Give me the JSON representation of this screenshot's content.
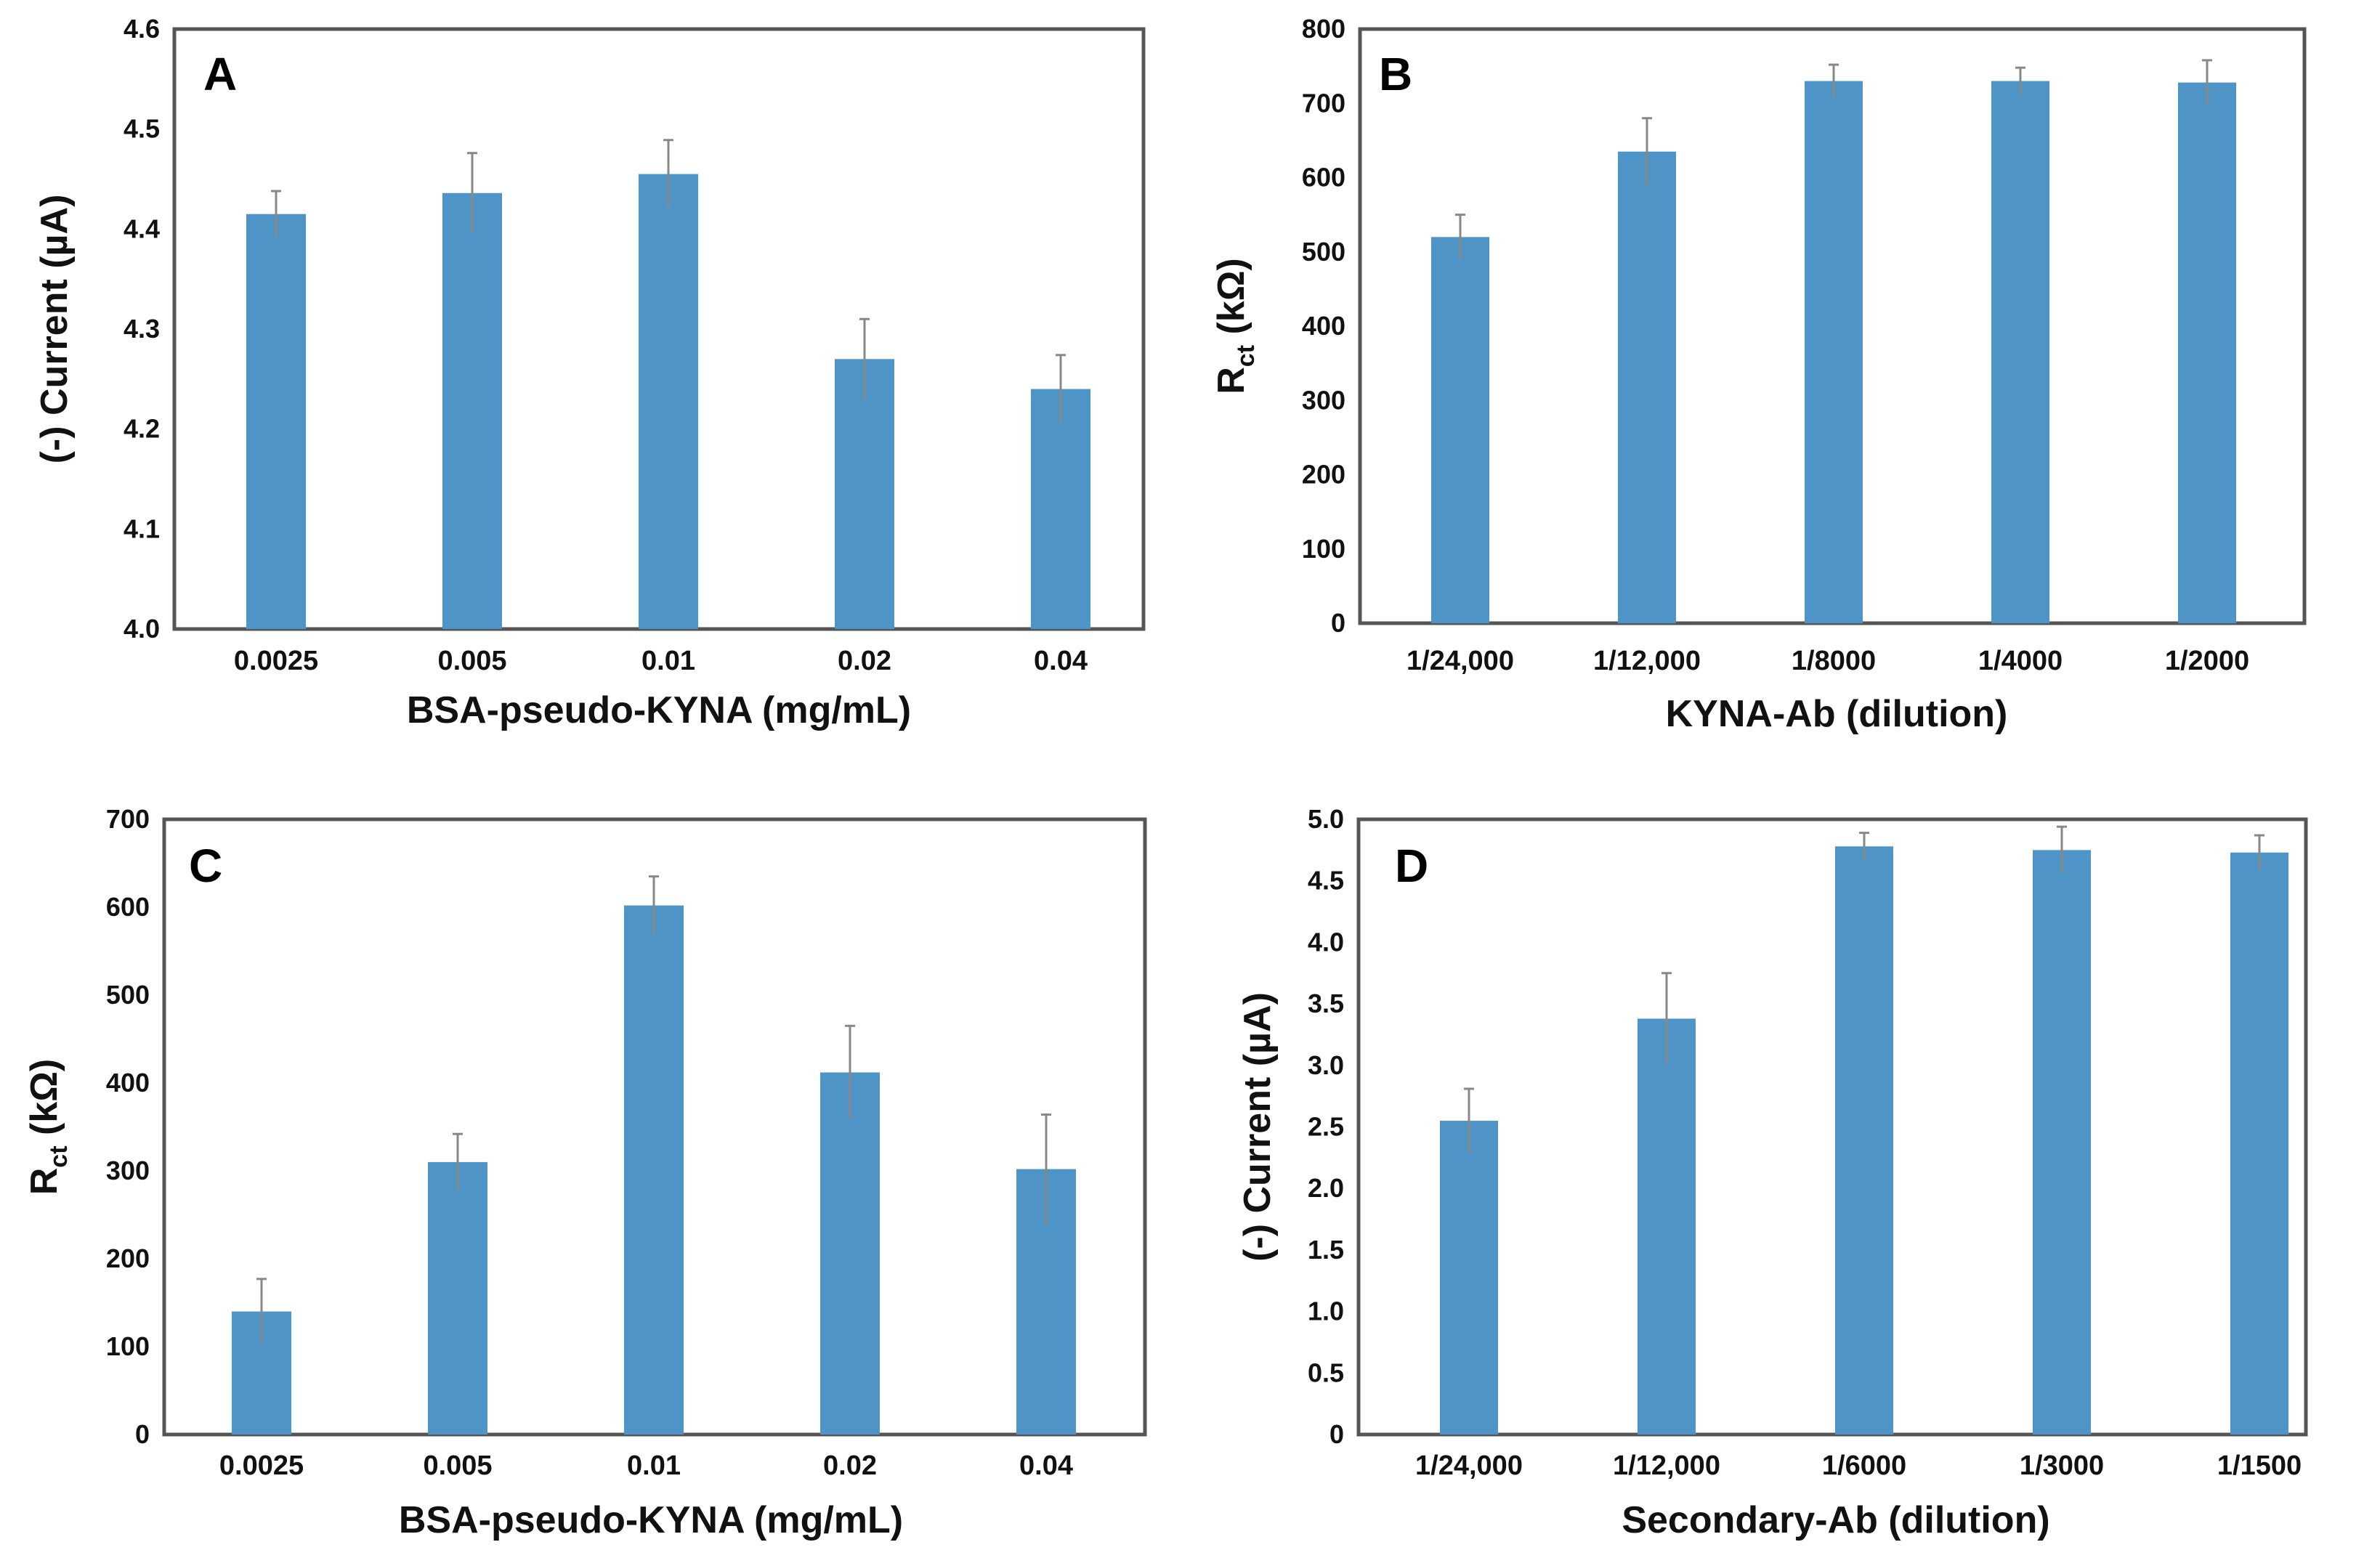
{
  "chart_data": [
    {
      "panel": "A",
      "type": "bar",
      "categories": [
        "0.0025",
        "0.005",
        "0.01",
        "0.02",
        "0.04"
      ],
      "values": [
        4.415,
        4.436,
        4.455,
        4.27,
        4.24
      ],
      "errors": [
        0.023,
        0.04,
        0.034,
        0.04,
        0.034
      ],
      "xlabel": "BSA-pseudo-KYNA (mg/mL)",
      "ylabel": {
        "main": "(-) Current (µA)"
      },
      "ylim": [
        4.0,
        4.6
      ],
      "yticks": [
        "4.0",
        "4.1",
        "4.2",
        "4.3",
        "4.4",
        "4.5",
        "4.6"
      ],
      "grid": false,
      "bar_color": "#4f94c6"
    },
    {
      "panel": "B",
      "type": "bar",
      "categories": [
        "1/24,000",
        "1/12,000",
        "1/8000",
        "1/4000",
        "1/2000"
      ],
      "values": [
        520,
        635,
        730,
        730,
        728
      ],
      "errors": [
        30,
        45,
        22,
        18,
        30
      ],
      "xlabel": "KYNA-Ab (dilution)",
      "ylabel": {
        "main": "R",
        "sub": "ct",
        "rest": " (kΩ)"
      },
      "ylim": [
        0,
        800
      ],
      "yticks": [
        "0",
        "100",
        "200",
        "300",
        "400",
        "500",
        "600",
        "700",
        "800"
      ],
      "grid": false,
      "bar_color": "#4f94c6"
    },
    {
      "panel": "C",
      "type": "bar",
      "categories": [
        "0.0025",
        "0.005",
        "0.01",
        "0.02",
        "0.04"
      ],
      "values": [
        140,
        310,
        602,
        412,
        302
      ],
      "errors": [
        37,
        32,
        33,
        53,
        62
      ],
      "xlabel": "BSA-pseudo-KYNA (mg/mL)",
      "ylabel": {
        "main": "R",
        "sub": "ct",
        "rest": " (kΩ)"
      },
      "ylim": [
        0,
        700
      ],
      "yticks": [
        "0",
        "100",
        "200",
        "300",
        "400",
        "500",
        "600",
        "700"
      ],
      "grid": false,
      "bar_color": "#4f94c6"
    },
    {
      "panel": "D",
      "type": "bar",
      "categories": [
        "1/24,000",
        "1/12,000",
        "1/6000",
        "1/3000",
        "1/1500"
      ],
      "values": [
        2.55,
        3.38,
        4.78,
        4.75,
        4.73
      ],
      "errors": [
        0.26,
        0.37,
        0.11,
        0.19,
        0.14
      ],
      "xlabel": "Secondary-Ab (dilution)",
      "ylabel": {
        "main": "(-) Current (µA)"
      },
      "ylim": [
        0,
        5.0
      ],
      "yticks": [
        "0",
        "0.5",
        "1.0",
        "1.5",
        "2.0",
        "2.5",
        "3.0",
        "3.5",
        "4.0",
        "4.5",
        "5.0"
      ],
      "grid": false,
      "bar_color": "#4f94c6"
    }
  ]
}
